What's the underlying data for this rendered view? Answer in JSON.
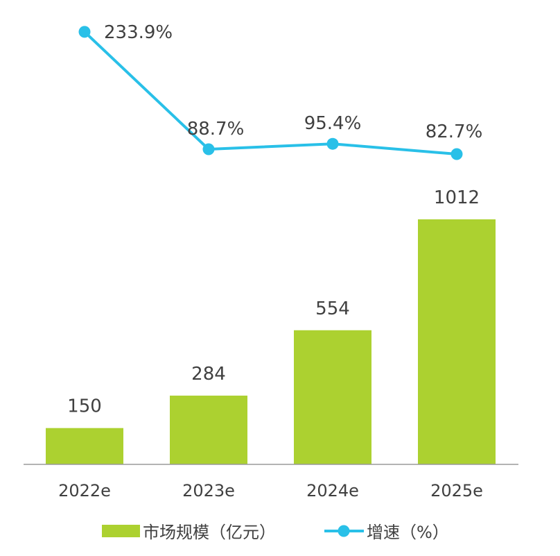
{
  "chart_data": {
    "type": "bar",
    "categories": [
      "2022e",
      "2023e",
      "2024e",
      "2025e"
    ],
    "series": [
      {
        "name": "市场规模（亿元）",
        "type": "bar",
        "values": [
          150,
          284,
          554,
          1012
        ],
        "labels": [
          "150",
          "284",
          "554",
          "1012"
        ]
      },
      {
        "name": "增速（%）",
        "type": "line",
        "values": [
          233.9,
          88.7,
          95.4,
          82.7
        ],
        "labels": [
          "233.9%",
          "88.7%",
          "95.4%",
          "82.7%"
        ]
      }
    ],
    "legend": {
      "bar_label": "市场规模（亿元）",
      "line_label": "增速（%）",
      "position": "bottom"
    },
    "colors": {
      "bar": "#acd130",
      "line": "#29c0e8",
      "text": "#404040",
      "axis": "#9a9a9a"
    }
  }
}
